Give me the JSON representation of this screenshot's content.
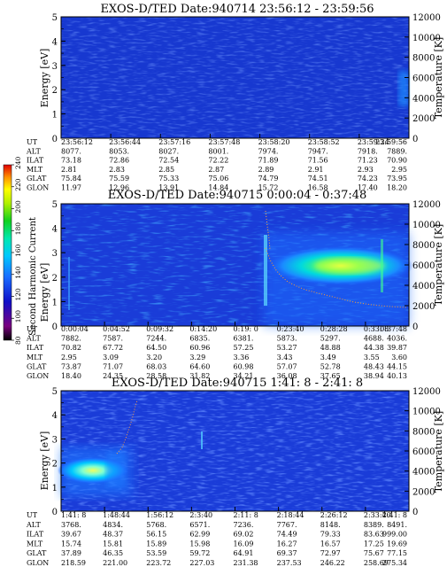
{
  "chart_data": [
    {
      "type": "heatmap",
      "title": "EXOS-D/TED   Date:940714  23:56:12 - 23:59:56",
      "ylabel_left": "Energy [eV]",
      "ylabel_right": "Temperature [K]",
      "ylim": [
        0,
        5
      ],
      "yticks": [
        "0",
        "1",
        "2",
        "3",
        "4",
        "5"
      ],
      "y2lim": [
        0,
        12000
      ],
      "y2ticks": [
        "0",
        "2000",
        "4000",
        "6000",
        "8000",
        "10000",
        "12000"
      ],
      "table_rows": [
        {
          "label": "UT",
          "values": [
            "23:56:12",
            "23:56:44",
            "23:57:16",
            "23:57:48",
            "23:58:20",
            "23:58:52",
            "23:59:24",
            "23:59:56"
          ]
        },
        {
          "label": "ALT",
          "values": [
            "8077.",
            "8053.",
            "8027.",
            "8001.",
            "7974.",
            "7947.",
            "7918.",
            "7889."
          ]
        },
        {
          "label": "ILAT",
          "values": [
            "73.18",
            "72.86",
            "72.54",
            "72.22",
            "71.89",
            "71.56",
            "71.23",
            "70.90"
          ]
        },
        {
          "label": "MLT",
          "values": [
            "2.81",
            "2.83",
            "2.85",
            "2.87",
            "2.89",
            "2.91",
            "2.93",
            "2.95"
          ]
        },
        {
          "label": "GLAT",
          "values": [
            "75.84",
            "75.59",
            "75.33",
            "75.06",
            "74.79",
            "74.51",
            "74.23",
            "73.95"
          ]
        },
        {
          "label": "GLON",
          "values": [
            "11.97",
            "12.96",
            "13.91",
            "14.84",
            "15.72",
            "16.58",
            "17.40",
            "18.20"
          ]
        }
      ]
    },
    {
      "type": "heatmap",
      "title": "EXOS-D/TED   Date:940715  0:00:04 - 0:37:48",
      "ylabel_left": "Energy [eV]",
      "ylabel_right": "Temperature [K]",
      "ylim": [
        0,
        5
      ],
      "yticks": [
        "0",
        "1",
        "2",
        "3",
        "4",
        "5"
      ],
      "y2lim": [
        0,
        12000
      ],
      "y2ticks": [
        "0",
        "2000",
        "4000",
        "6000",
        "8000",
        "10000",
        "12000"
      ],
      "colorbar": {
        "label": "Second Harmonic Current",
        "ticks": [
          "80",
          "100",
          "120",
          "140",
          "160",
          "180",
          "200",
          "220",
          "240"
        ]
      },
      "table_rows": [
        {
          "label": "UT",
          "values": [
            "0:00:04",
            "0:04:52",
            "0:09:32",
            "0:14:20",
            "0:19: 0",
            "0:23:40",
            "0:28:28",
            "0:33: 8",
            "0:37:48"
          ]
        },
        {
          "label": "ALT",
          "values": [
            "7882.",
            "7587.",
            "7244.",
            "6835.",
            "6381.",
            "5873.",
            "5297.",
            "4688.",
            "4036."
          ]
        },
        {
          "label": "ILAT",
          "values": [
            "70.82",
            "67.72",
            "64.50",
            "60.96",
            "57.25",
            "53.27",
            "48.88",
            "44.38",
            "39.87"
          ]
        },
        {
          "label": "MLT",
          "values": [
            "2.95",
            "3.09",
            "3.20",
            "3.29",
            "3.36",
            "3.43",
            "3.49",
            "3.55",
            "3.60"
          ]
        },
        {
          "label": "GLAT",
          "values": [
            "73.87",
            "71.07",
            "68.03",
            "64.60",
            "60.98",
            "57.07",
            "52.78",
            "48.43",
            "44.15"
          ]
        },
        {
          "label": "GLON",
          "values": [
            "18.40",
            "24.35",
            "28.58",
            "31.82",
            "34.21",
            "36.08",
            "37.65",
            "38.94",
            "40.13"
          ]
        }
      ]
    },
    {
      "type": "heatmap",
      "title": "EXOS-D/TED   Date:940715  1:41: 8 - 2:41: 8",
      "ylabel_left": "Energy [eV]",
      "ylabel_right": "Temperature [K]",
      "ylim": [
        0,
        5
      ],
      "yticks": [
        "0",
        "1",
        "2",
        "3",
        "4",
        "5"
      ],
      "y2lim": [
        0,
        12000
      ],
      "y2ticks": [
        "0",
        "2000",
        "4000",
        "6000",
        "8000",
        "10000",
        "12000"
      ],
      "table_rows": [
        {
          "label": "UT",
          "values": [
            "1:41: 8",
            "1:48:44",
            "1:56:12",
            "2:3:40",
            "2:11: 8",
            "2:18:44",
            "2:26:12",
            "2:33:40",
            "2:41: 8"
          ]
        },
        {
          "label": "ALT",
          "values": [
            "3768.",
            "4834.",
            "5768.",
            "6571.",
            "7236.",
            "7767.",
            "8148.",
            "8389.",
            "8491."
          ]
        },
        {
          "label": "ILAT",
          "values": [
            "39.67",
            "48.37",
            "56.15",
            "62.99",
            "69.02",
            "74.49",
            "79.33",
            "83.63",
            "999.00"
          ]
        },
        {
          "label": "MLT",
          "values": [
            "15.74",
            "15.81",
            "15.89",
            "15.98",
            "16.09",
            "16.27",
            "16.57",
            "17.25",
            "19.69"
          ]
        },
        {
          "label": "GLAT",
          "values": [
            "37.89",
            "46.35",
            "53.59",
            "59.72",
            "64.91",
            "69.37",
            "72.97",
            "75.67",
            "77.15"
          ]
        },
        {
          "label": "GLON",
          "values": [
            "218.59",
            "221.00",
            "223.72",
            "227.03",
            "231.38",
            "237.53",
            "246.22",
            "258.69",
            "275.34"
          ]
        }
      ]
    }
  ]
}
